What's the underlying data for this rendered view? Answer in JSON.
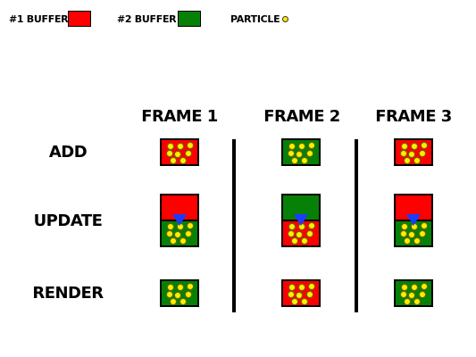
{
  "colors": {
    "buffer1": "#ff0000",
    "buffer2": "#078007",
    "particle": "#ffee00",
    "arrow": "#1a3cff"
  },
  "legend": {
    "buffer1_label": "#1 BUFFER",
    "buffer2_label": "#2 BUFFER",
    "particle_label": "PARTICLE"
  },
  "columns": [
    "FRAME 1",
    "FRAME 2",
    "FRAME 3"
  ],
  "rows": [
    "ADD",
    "UPDATE",
    "RENDER"
  ],
  "cells": {
    "add": [
      "buffer1",
      "buffer2",
      "buffer1"
    ],
    "update": [
      {
        "top": "buffer1",
        "bottom": "buffer2"
      },
      {
        "top": "buffer2",
        "bottom": "buffer1"
      },
      {
        "top": "buffer1",
        "bottom": "buffer2"
      }
    ],
    "render": [
      "buffer2",
      "buffer1",
      "buffer2"
    ]
  }
}
